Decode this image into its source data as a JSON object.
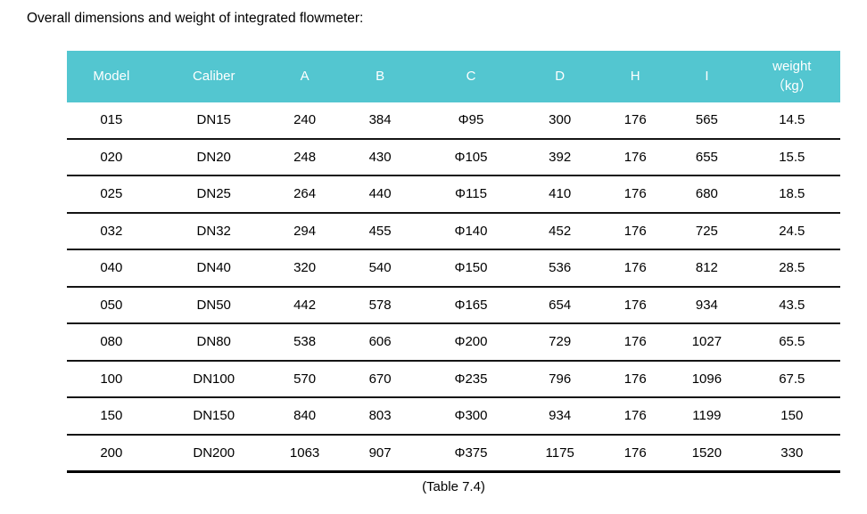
{
  "title": "Overall dimensions and weight of integrated flowmeter:",
  "caption": "(Table 7.4)",
  "colors": {
    "header_bg": "#53c6d0",
    "header_text": "#ffffff",
    "row_line": "#141414"
  },
  "table": {
    "columns": [
      {
        "label": "Model"
      },
      {
        "label": "Caliber"
      },
      {
        "label": "A"
      },
      {
        "label": "B"
      },
      {
        "label": "C"
      },
      {
        "label": "D"
      },
      {
        "label": "H"
      },
      {
        "label": "I"
      },
      {
        "label": "weight",
        "sub": "（kg）"
      }
    ],
    "rows": [
      [
        "015",
        "DN15",
        "240",
        "384",
        "Φ95",
        "300",
        "176",
        "565",
        "14.5"
      ],
      [
        "020",
        "DN20",
        "248",
        "430",
        "Φ105",
        "392",
        "176",
        "655",
        "15.5"
      ],
      [
        "025",
        "DN25",
        "264",
        "440",
        "Φ115",
        "410",
        "176",
        "680",
        "18.5"
      ],
      [
        "032",
        "DN32",
        "294",
        "455",
        "Φ140",
        "452",
        "176",
        "725",
        "24.5"
      ],
      [
        "040",
        "DN40",
        "320",
        "540",
        "Φ150",
        "536",
        "176",
        "812",
        "28.5"
      ],
      [
        "050",
        "DN50",
        "442",
        "578",
        "Φ165",
        "654",
        "176",
        "934",
        "43.5"
      ],
      [
        "080",
        "DN80",
        "538",
        "606",
        "Φ200",
        "729",
        "176",
        "1027",
        "65.5"
      ],
      [
        "100",
        "DN100",
        "570",
        "670",
        "Φ235",
        "796",
        "176",
        "1096",
        "67.5"
      ],
      [
        "150",
        "DN150",
        "840",
        "803",
        "Φ300",
        "934",
        "176",
        "1199",
        "150"
      ],
      [
        "200",
        "DN200",
        "1063",
        "907",
        "Φ375",
        "1175",
        "176",
        "1520",
        "330"
      ]
    ]
  }
}
